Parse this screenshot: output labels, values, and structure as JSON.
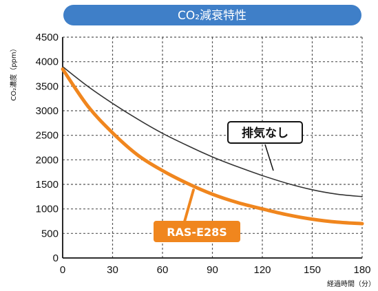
{
  "chart_data": {
    "type": "line",
    "title": "CO₂減衰特性",
    "xlabel": "経過時間（分）",
    "ylabel": "CO₂濃度（ppm）",
    "xlim": [
      0,
      180
    ],
    "ylim": [
      0,
      4500
    ],
    "x_ticks": [
      0,
      30,
      60,
      90,
      120,
      150,
      180
    ],
    "y_ticks": [
      0,
      500,
      1000,
      1500,
      2000,
      2500,
      3000,
      3500,
      4000,
      4500
    ],
    "grid": true,
    "series": [
      {
        "name": "排気なし",
        "color": "#333333",
        "x": [
          0,
          15,
          30,
          45,
          60,
          75,
          90,
          105,
          120,
          135,
          150,
          165,
          180
        ],
        "values": [
          3900,
          3500,
          3150,
          2830,
          2540,
          2290,
          2060,
          1860,
          1680,
          1520,
          1390,
          1300,
          1250
        ]
      },
      {
        "name": "RAS-E28S",
        "color": "#f0861e",
        "x": [
          0,
          15,
          30,
          45,
          60,
          75,
          90,
          105,
          120,
          135,
          150,
          165,
          180
        ],
        "values": [
          3850,
          3100,
          2550,
          2100,
          1780,
          1520,
          1300,
          1130,
          1000,
          880,
          790,
          730,
          700
        ]
      }
    ]
  }
}
